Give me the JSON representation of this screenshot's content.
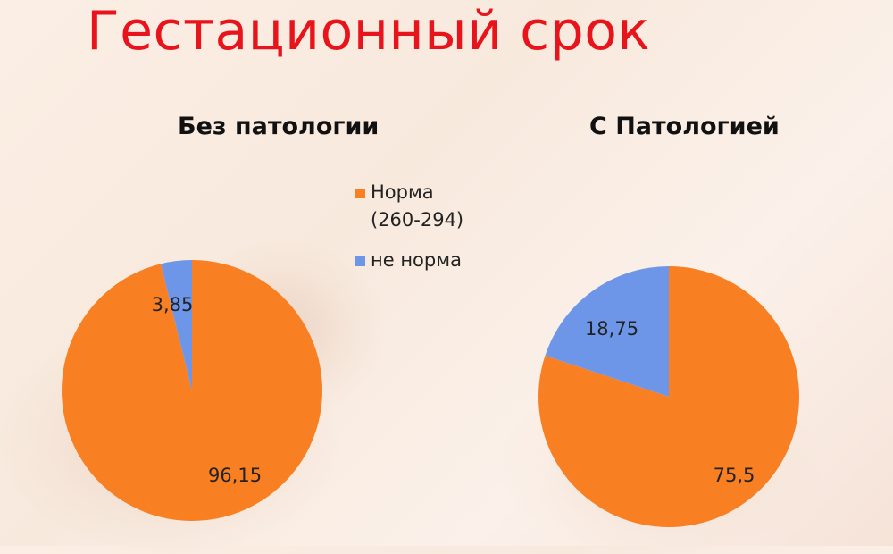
{
  "slide": {
    "title": "Гестационный срок"
  },
  "colors": {
    "norm": "#f97f23",
    "not_norm": "#6e96e8",
    "title": "#e8141b"
  },
  "legend": [
    {
      "label_line1": "Норма",
      "label_line2": "(260-294)",
      "color": "#f97f23"
    },
    {
      "label_line1": "не норма",
      "label_line2": "",
      "color": "#6e96e8"
    }
  ],
  "chart_data": [
    {
      "type": "pie",
      "title": "Без патологии",
      "slices": [
        {
          "category": "Норма (260-294)",
          "value": 96.15,
          "label": "96,15",
          "color": "#f97f23"
        },
        {
          "category": "не норма",
          "value": 3.85,
          "label": "3,85",
          "color": "#6e96e8"
        }
      ]
    },
    {
      "type": "pie",
      "title": "С Патологией",
      "slices": [
        {
          "category": "Норма (260-294)",
          "value": 75.5,
          "label": "75,5",
          "color": "#f97f23"
        },
        {
          "category": "не норма",
          "value": 18.75,
          "label": "18,75",
          "color": "#6e96e8"
        }
      ]
    }
  ]
}
